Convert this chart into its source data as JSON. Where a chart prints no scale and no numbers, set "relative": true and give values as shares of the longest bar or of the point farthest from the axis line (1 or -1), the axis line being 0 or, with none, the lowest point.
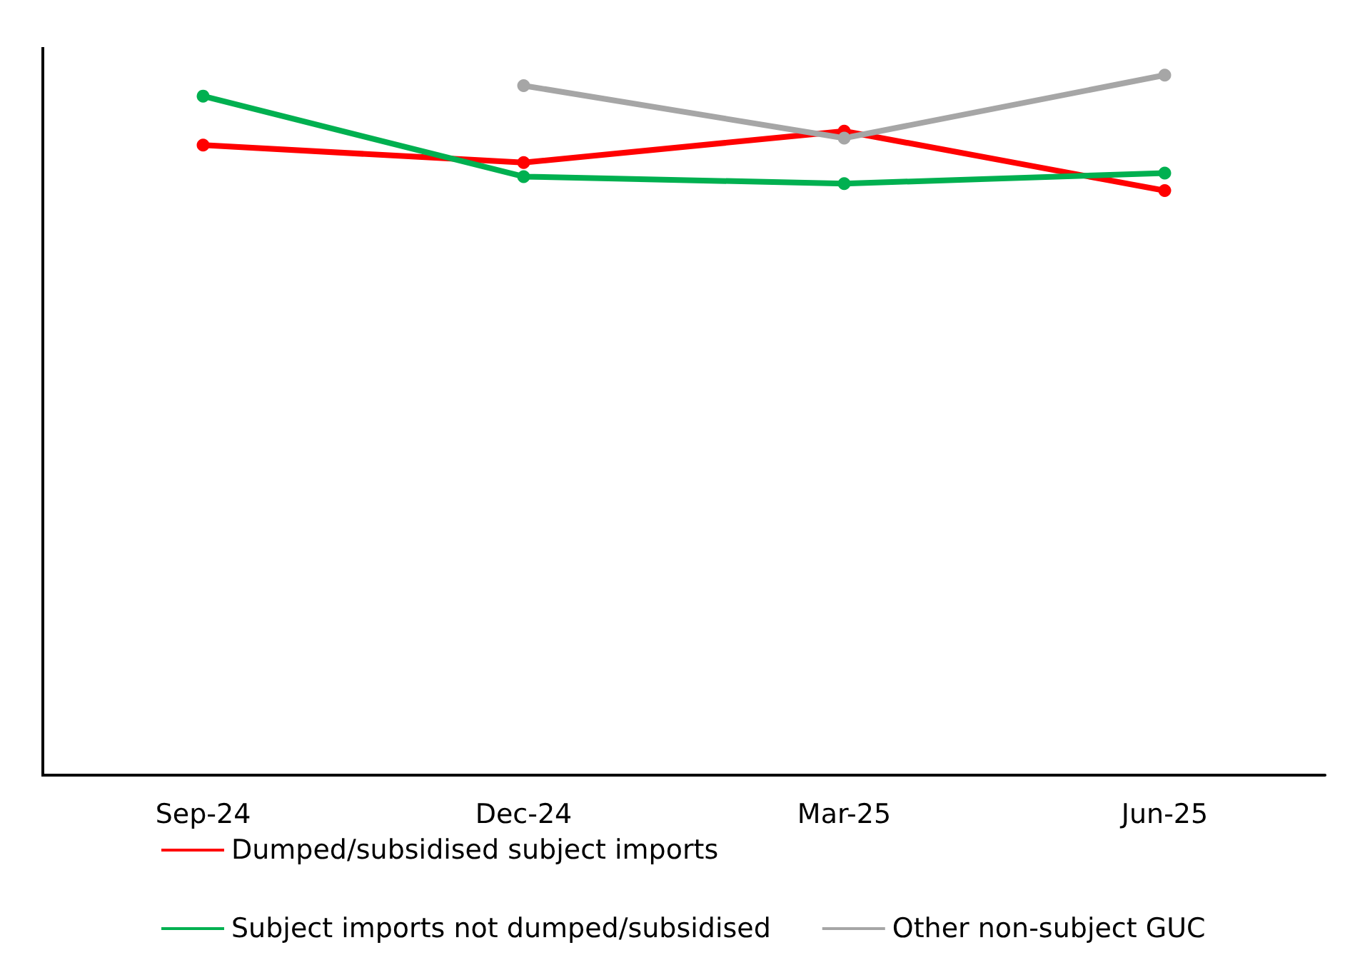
{
  "chart_data": {
    "type": "line",
    "relative": true,
    "categories": [
      "Sep-24",
      "Dec-24",
      "Mar-25",
      "Jun-25"
    ],
    "series": [
      {
        "name": "Dumped/subsidised subject imports",
        "color": "#ff0000",
        "values": [
          0.9,
          0.875,
          0.92,
          0.835
        ]
      },
      {
        "name": "Subject imports not dumped/subsidised",
        "color": "#00b050",
        "values": [
          0.97,
          0.855,
          0.845,
          0.86
        ]
      },
      {
        "name": "Other non-subject GUC",
        "color": "#a6a6a6",
        "values": [
          null,
          0.985,
          0.91,
          1
        ]
      }
    ],
    "legend": "bottom",
    "marker": "circle",
    "line_style": "solid",
    "grid": false
  }
}
